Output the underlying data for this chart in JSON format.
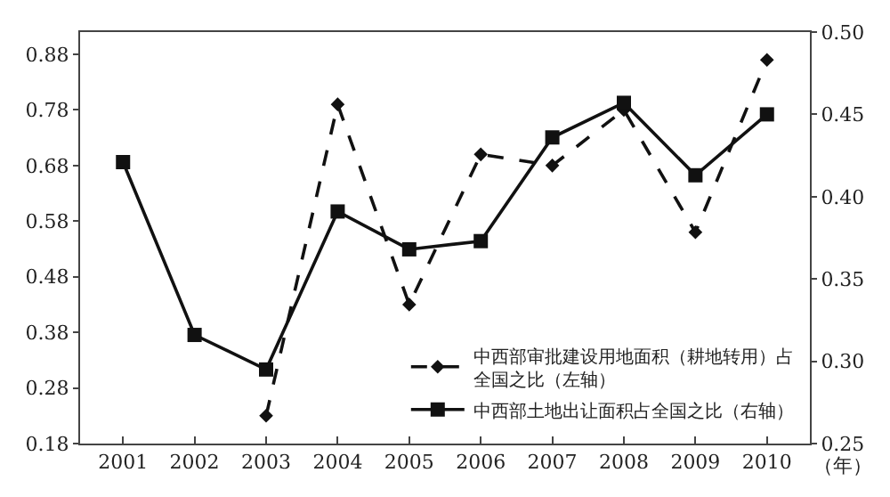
{
  "chart_data": {
    "type": "line",
    "categories": [
      "2001",
      "2002",
      "2003",
      "2004",
      "2005",
      "2006",
      "2007",
      "2008",
      "2009",
      "2010"
    ],
    "xlabel": "（年）",
    "series": [
      {
        "name": "中西部审批建设用地面积（耕地转用）占全国之比（左轴）",
        "color": "#111111",
        "line_style": "dashed",
        "marker": "diamond",
        "values": [
          null,
          null,
          0.23,
          0.79,
          0.43,
          0.7,
          0.68,
          0.78,
          0.56,
          0.87
        ]
      },
      {
        "name": "中西部土地出让面积占全国之比（右轴）",
        "color": "#111111",
        "line_style": "solid",
        "marker": "square",
        "axis": "y2",
        "values": [
          0.421,
          0.316,
          0.295,
          0.391,
          0.368,
          0.373,
          0.436,
          0.457,
          0.413,
          0.45
        ]
      }
    ],
    "ylim": [
      0.18,
      0.92
    ],
    "yticks": [
      {
        "value": 0.18,
        "label": "0.18"
      },
      {
        "value": 0.28,
        "label": "0.28"
      },
      {
        "value": 0.38,
        "label": "0.38"
      },
      {
        "value": 0.48,
        "label": "0.48"
      },
      {
        "value": 0.58,
        "label": "0.58"
      },
      {
        "value": 0.68,
        "label": "0.68"
      },
      {
        "value": 0.78,
        "label": "0.78"
      },
      {
        "value": 0.88,
        "label": "0.88"
      }
    ],
    "y2lim": [
      0.25,
      0.5
    ],
    "y2ticks": [
      {
        "value": 0.25,
        "label": "0.25"
      },
      {
        "value": 0.3,
        "label": "0.30"
      },
      {
        "value": 0.35,
        "label": "0.35"
      },
      {
        "value": 0.4,
        "label": "0.40"
      },
      {
        "value": 0.45,
        "label": "0.45"
      },
      {
        "value": 0.5,
        "label": "0.50"
      }
    ],
    "legend": "bottom right"
  }
}
